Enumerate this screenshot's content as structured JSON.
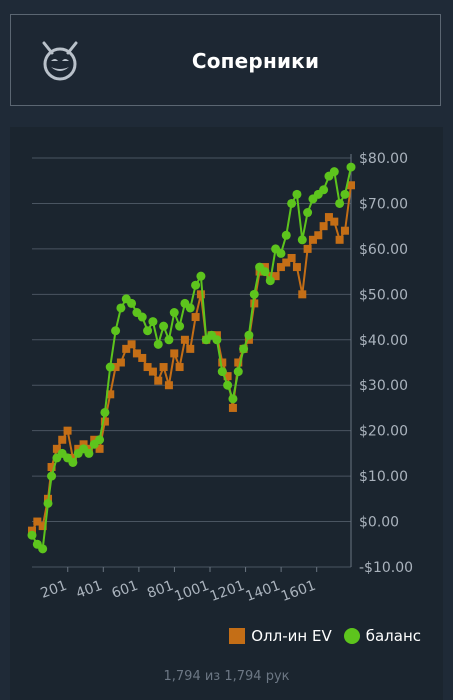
{
  "header": {
    "title": "Соперники",
    "logo_icon": "devil-face-icon"
  },
  "legend": {
    "items": [
      {
        "label": "Олл-ин EV",
        "color": "#c46e16",
        "shape": "square"
      },
      {
        "label": "баланс",
        "color": "#5dc41d",
        "shape": "circle"
      }
    ]
  },
  "footer": {
    "count_text": "1,794 из 1,794 рук"
  },
  "chart_data": {
    "type": "line",
    "xlabel": "",
    "ylabel": "",
    "xlim": [
      0,
      1794
    ],
    "ylim": [
      -10,
      80
    ],
    "x_ticks": [
      201,
      401,
      601,
      801,
      1001,
      1201,
      1401,
      1601
    ],
    "x_tick_labels": [
      "201",
      "401",
      "601",
      "801",
      "1001",
      "1201",
      "1401",
      "1601"
    ],
    "y_ticks": [
      -10,
      0,
      10,
      20,
      30,
      40,
      50,
      60,
      70,
      80
    ],
    "y_tick_labels": [
      "-$10.00",
      "$0.00",
      "$10.00",
      "$20.00",
      "$30.00",
      "$40.00",
      "$50.00",
      "$60.00",
      "$70.00",
      "$80.00"
    ],
    "y_axis_position": "right",
    "grid": true,
    "series": [
      {
        "name": "Олл-ин EV",
        "color": "#c46e16",
        "x": [
          0,
          30,
          60,
          90,
          110,
          140,
          170,
          200,
          230,
          260,
          290,
          320,
          350,
          380,
          410,
          440,
          470,
          500,
          530,
          560,
          590,
          620,
          650,
          680,
          710,
          740,
          770,
          800,
          830,
          860,
          890,
          920,
          950,
          980,
          1010,
          1040,
          1070,
          1100,
          1130,
          1160,
          1190,
          1220,
          1250,
          1280,
          1310,
          1340,
          1370,
          1400,
          1430,
          1460,
          1490,
          1520,
          1550,
          1580,
          1610,
          1640,
          1670,
          1700,
          1730,
          1760,
          1794
        ],
        "y": [
          -2,
          0,
          -1,
          5,
          12,
          16,
          18,
          20,
          14,
          16,
          17,
          16,
          18,
          16,
          22,
          28,
          34,
          35,
          38,
          39,
          37,
          36,
          34,
          33,
          31,
          34,
          30,
          37,
          34,
          40,
          38,
          45,
          50,
          40,
          41,
          41,
          35,
          32,
          25,
          35,
          38,
          40,
          48,
          55,
          56,
          54,
          54,
          56,
          57,
          58,
          56,
          50,
          60,
          62,
          63,
          65,
          67,
          66,
          62,
          64,
          74
        ]
      },
      {
        "name": "баланс",
        "color": "#5dc41d",
        "x": [
          0,
          30,
          60,
          90,
          110,
          140,
          170,
          200,
          230,
          260,
          290,
          320,
          350,
          380,
          410,
          440,
          470,
          500,
          530,
          560,
          590,
          620,
          650,
          680,
          710,
          740,
          770,
          800,
          830,
          860,
          890,
          920,
          950,
          980,
          1010,
          1040,
          1070,
          1100,
          1130,
          1160,
          1190,
          1220,
          1250,
          1280,
          1310,
          1340,
          1370,
          1400,
          1430,
          1460,
          1490,
          1520,
          1550,
          1580,
          1610,
          1640,
          1670,
          1700,
          1730,
          1760,
          1794
        ],
        "y": [
          -3,
          -5,
          -6,
          4,
          10,
          14,
          15,
          14,
          13,
          15,
          16,
          15,
          17,
          18,
          24,
          34,
          42,
          47,
          49,
          48,
          46,
          45,
          42,
          44,
          39,
          43,
          40,
          46,
          43,
          48,
          47,
          52,
          54,
          40,
          41,
          40,
          33,
          30,
          27,
          33,
          38,
          41,
          50,
          56,
          55,
          53,
          60,
          59,
          63,
          70,
          72,
          62,
          68,
          71,
          72,
          73,
          76,
          77,
          70,
          72,
          78
        ]
      }
    ]
  }
}
